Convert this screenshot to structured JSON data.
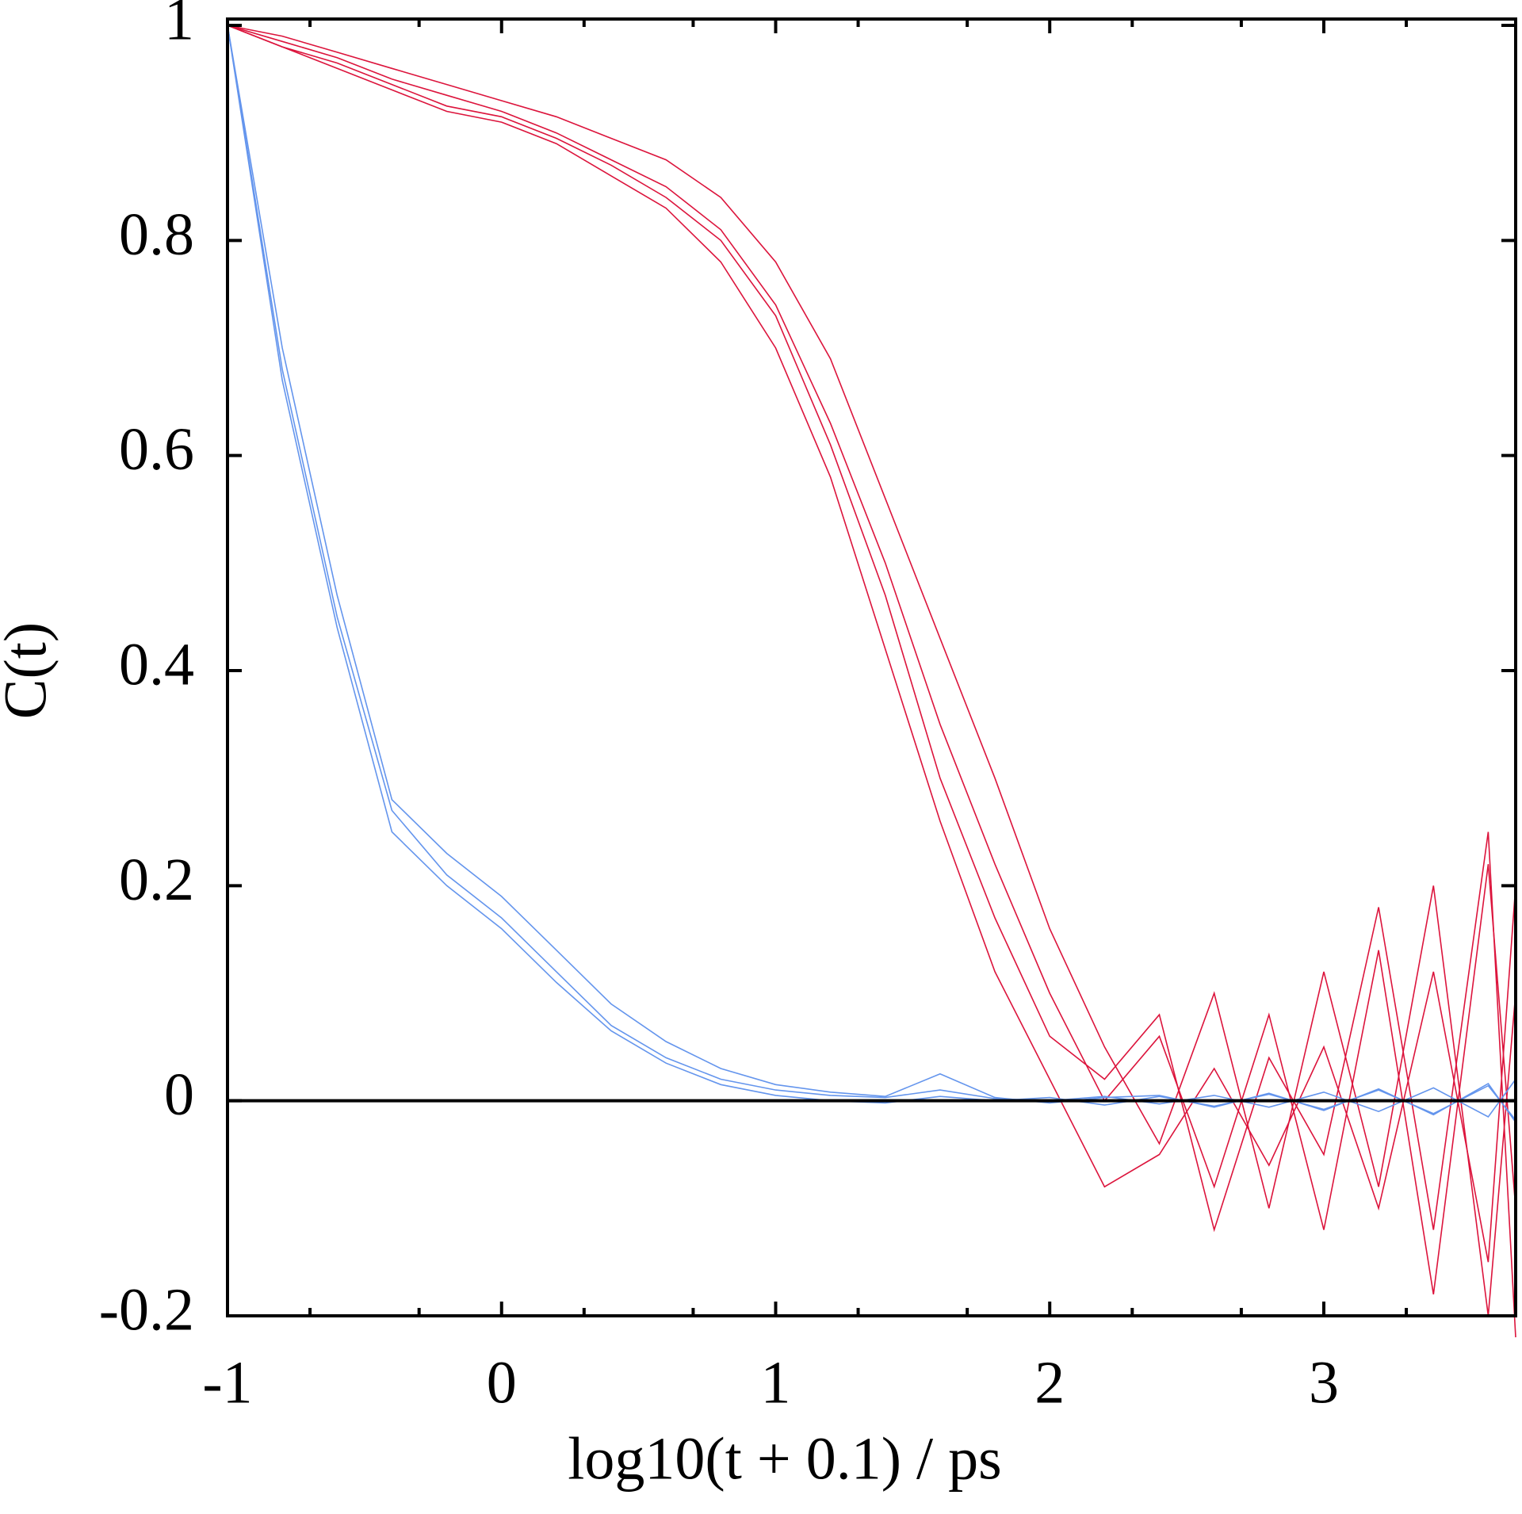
{
  "chart_data": {
    "type": "line",
    "xlabel": "log10(t + 0.1) / ps",
    "ylabel": "C(t)",
    "x": [
      -1,
      -0.8,
      -0.6,
      -0.4,
      -0.2,
      0,
      0.2,
      0.4,
      0.6,
      0.8,
      1,
      1.2,
      1.4,
      1.6,
      1.8,
      2,
      2.2,
      2.4,
      2.6,
      2.8,
      3,
      3.2,
      3.4,
      3.6,
      3.7
    ],
    "series": [
      {
        "color": "#dc143c",
        "values": [
          1,
          0.98,
          0.96,
          0.94,
          0.92,
          0.91,
          0.89,
          0.86,
          0.83,
          0.78,
          0.7,
          0.58,
          0.42,
          0.26,
          0.12,
          0.02,
          -0.08,
          -0.05,
          0.03,
          -0.06,
          0.05,
          -0.1,
          0.12,
          -0.15,
          0.2
        ]
      },
      {
        "color": "#dc143c",
        "values": [
          1,
          0.985,
          0.97,
          0.95,
          0.935,
          0.92,
          0.9,
          0.875,
          0.85,
          0.81,
          0.74,
          0.63,
          0.5,
          0.35,
          0.22,
          0.1,
          0,
          0.06,
          -0.08,
          0.08,
          -0.12,
          0.14,
          -0.18,
          0.22,
          -0.1
        ]
      },
      {
        "color": "#dc143c",
        "values": [
          1,
          0.99,
          0.975,
          0.96,
          0.945,
          0.93,
          0.915,
          0.895,
          0.875,
          0.84,
          0.78,
          0.69,
          0.56,
          0.43,
          0.3,
          0.16,
          0.05,
          -0.04,
          0.1,
          -0.1,
          0.12,
          -0.08,
          0.2,
          -0.2,
          0.1
        ]
      },
      {
        "color": "#dc143c",
        "values": [
          1,
          0.98,
          0.965,
          0.945,
          0.925,
          0.915,
          0.895,
          0.87,
          0.84,
          0.8,
          0.73,
          0.61,
          0.47,
          0.3,
          0.17,
          0.06,
          0.02,
          0.08,
          -0.12,
          0.04,
          -0.05,
          0.18,
          -0.12,
          0.25,
          -0.22
        ]
      },
      {
        "color": "#6495ed",
        "values": [
          1,
          0.68,
          0.45,
          0.27,
          0.21,
          0.17,
          0.12,
          0.07,
          0.04,
          0.02,
          0.01,
          0.005,
          0.003,
          0.01,
          0.002,
          0,
          0.004,
          -0.003,
          0.005,
          -0.006,
          0.008,
          -0.01,
          0.012,
          -0.015,
          0.02
        ]
      },
      {
        "color": "#6495ed",
        "values": [
          1,
          0.7,
          0.47,
          0.28,
          0.23,
          0.19,
          0.14,
          0.09,
          0.055,
          0.03,
          0.015,
          0.008,
          0.004,
          0.025,
          0.003,
          -0.002,
          0.003,
          0.005,
          -0.006,
          0.007,
          -0.009,
          0.011,
          -0.013,
          0.016,
          -0.02
        ]
      },
      {
        "color": "#6495ed",
        "values": [
          1,
          0.67,
          0.44,
          0.25,
          0.2,
          0.16,
          0.11,
          0.065,
          0.035,
          0.015,
          0.005,
          0,
          -0.002,
          0.004,
          0,
          0.003,
          -0.004,
          0.004,
          -0.005,
          0.006,
          -0.008,
          0.01,
          -0.012,
          0.014,
          -0.018
        ]
      }
    ],
    "xlim": [
      -1,
      3.7
    ],
    "ylim": [
      -0.2,
      1
    ],
    "xticks": [
      -1,
      0,
      1,
      2,
      3
    ],
    "xminorticks": [
      -0.699,
      -0.301,
      0.301,
      0.699,
      1.301,
      1.699,
      2.301,
      2.699,
      3.301
    ],
    "yticks": [
      -0.2,
      0,
      0.2,
      0.4,
      0.6,
      0.8,
      1
    ],
    "zero_line": true,
    "grid": false
  }
}
